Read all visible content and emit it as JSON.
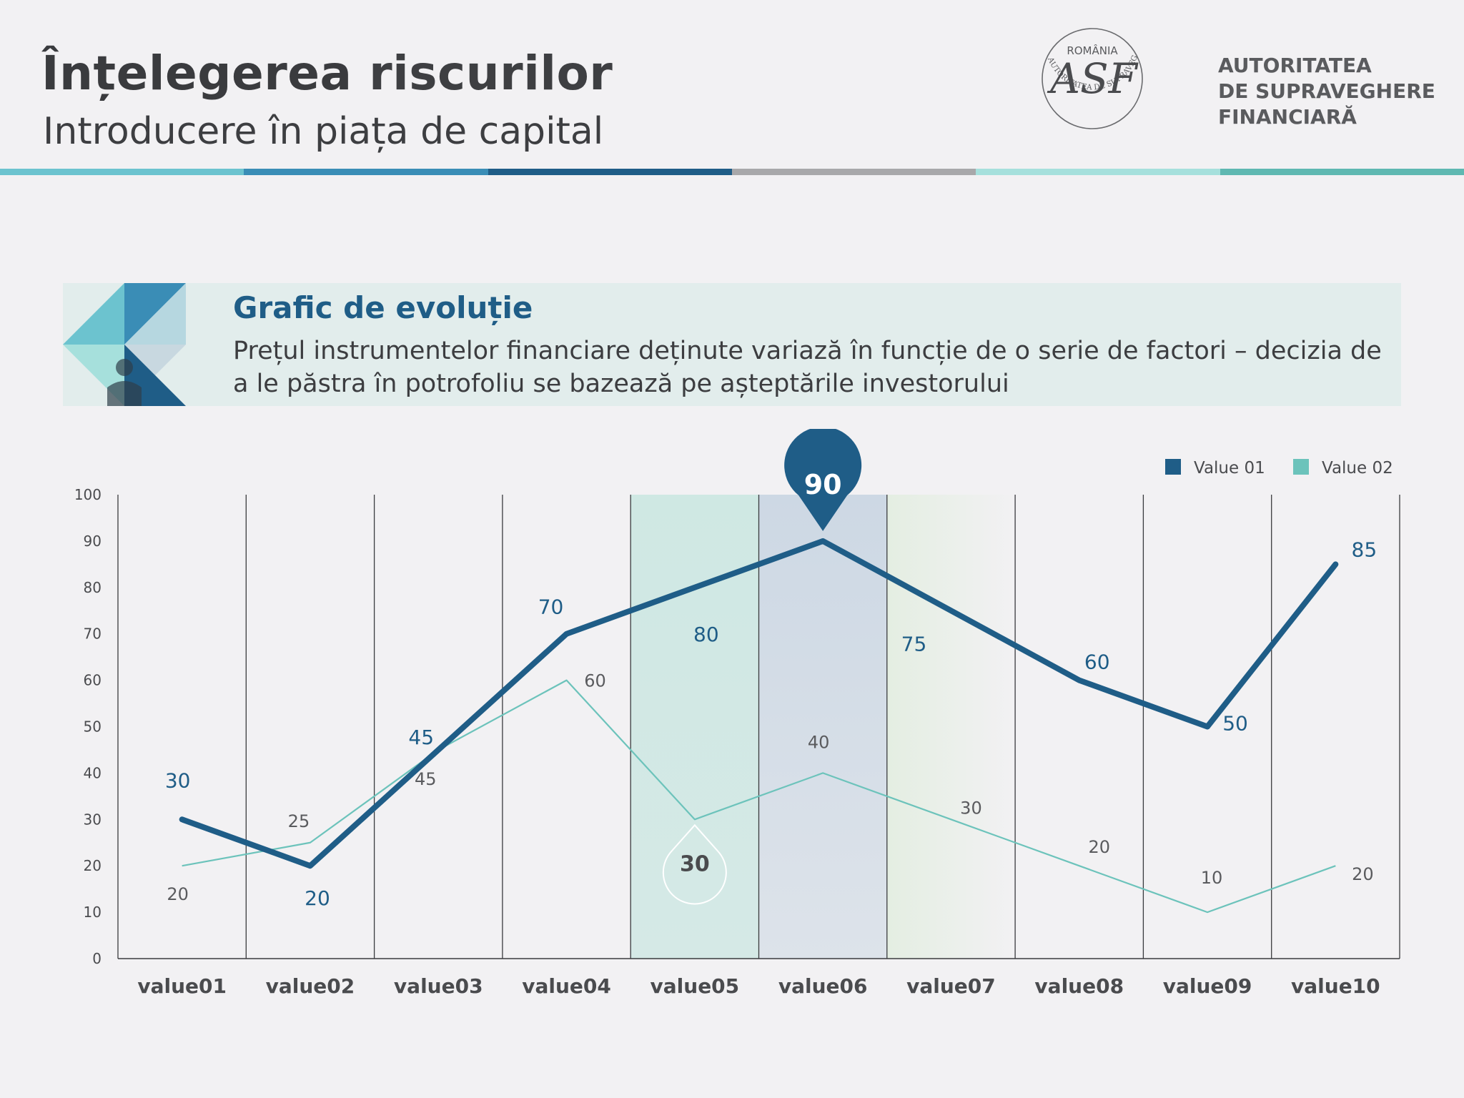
{
  "header": {
    "title_bold": "Înțelegerea",
    "title_rest": "riscurilor",
    "subtitle": "Introducere în piața de capital",
    "logo": {
      "seal_top": "ROMÂNIA",
      "seal_ring": "AUTORITATEA DE SUPRAVEGHERE FINANCIARĂ",
      "monogram": "ASF",
      "line1": "AUTORITATEA",
      "line2": "DE SUPRAVEGHERE",
      "line3": "FINANCIARĂ"
    },
    "stripe_colors": [
      "#6cc3cf",
      "#3a8db6",
      "#1f5d87",
      "#a8a8aa",
      "#a6e0dc",
      "#5fb8b1"
    ]
  },
  "banner": {
    "title": "Grafic de evoluție",
    "text": "Prețul instrumentelor financiare deținute variază în funcție de o serie de factori – decizia de a le păstra în potrofoliu se bazează pe așteptările investorului"
  },
  "chart_data": {
    "type": "line",
    "categories": [
      "value01",
      "value02",
      "value03",
      "value04",
      "value05",
      "value06",
      "value07",
      "value08",
      "value09",
      "value10"
    ],
    "series": [
      {
        "name": "Value 01",
        "color": "#1f5d87",
        "values": [
          30,
          20,
          45,
          70,
          80,
          90,
          75,
          60,
          50,
          85
        ]
      },
      {
        "name": "Value 02",
        "color": "#6cc3bb",
        "values": [
          20,
          25,
          45,
          60,
          30,
          40,
          30,
          20,
          10,
          20
        ]
      }
    ],
    "ylim": [
      0,
      100
    ],
    "yticks": [
      0,
      10,
      20,
      30,
      40,
      50,
      60,
      70,
      80,
      90,
      100
    ],
    "legend_position": "top-right",
    "grid": "vertical",
    "highlight": {
      "series1_marker": "90",
      "series2_marker": "30"
    },
    "highlighted_columns": [
      "value05",
      "value06",
      "value07"
    ]
  }
}
